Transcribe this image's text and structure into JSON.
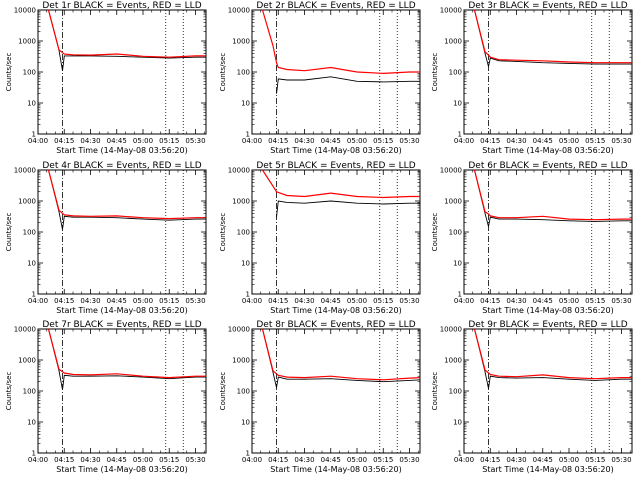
{
  "chart_data": [
    {
      "type": "line",
      "title": "Det 1r BLACK = Events, RED = LLD",
      "xlabel": "Start Time (14-May-08 03:56:20)",
      "ylabel": "Counts/sec",
      "y_scale": "log",
      "ylim": [
        1,
        10000
      ],
      "x_range": [
        "04:00",
        "05:36"
      ],
      "x_ticks": [
        "04:00",
        "04:15",
        "04:30",
        "04:45",
        "05:00",
        "05:15",
        "05:30"
      ],
      "y_ticks": [
        "1",
        "10",
        "100",
        "1000",
        "10000"
      ],
      "markers": {
        "dashdot": "04:14",
        "dotted": [
          "05:13",
          "05:23"
        ]
      },
      "series": [
        {
          "color": "#000000",
          "x": [
            "04:06",
            "04:12",
            "04:14",
            "04:15",
            "04:20",
            "04:30",
            "04:45",
            "05:00",
            "05:15",
            "05:30",
            "05:36"
          ],
          "y": [
            10000,
            500,
            110,
            330,
            330,
            330,
            320,
            300,
            280,
            300,
            300
          ]
        },
        {
          "color": "#ff0000",
          "x": [
            "04:06",
            "04:12",
            "04:14",
            "04:15",
            "04:20",
            "04:30",
            "04:45",
            "05:00",
            "05:15",
            "05:30",
            "05:36"
          ],
          "y": [
            10000,
            520,
            420,
            380,
            360,
            350,
            380,
            320,
            300,
            330,
            330
          ]
        }
      ]
    },
    {
      "type": "line",
      "title": "Det 2r BLACK = Events, RED = LLD",
      "xlabel": "Start Time (14-May-08 03:56:20)",
      "ylabel": "Counts/sec",
      "y_scale": "log",
      "ylim": [
        1,
        10000
      ],
      "x_range": [
        "04:00",
        "05:36"
      ],
      "x_ticks": [
        "04:00",
        "04:15",
        "04:30",
        "04:45",
        "05:00",
        "05:15",
        "05:30"
      ],
      "y_ticks": [
        "1",
        "10",
        "100",
        "1000",
        "10000"
      ],
      "markers": {
        "dashdot": "04:14",
        "dotted": [
          "05:13",
          "05:23"
        ]
      },
      "series": [
        {
          "color": "#000000",
          "x": [
            "04:14",
            "04:15",
            "04:20",
            "04:30",
            "04:45",
            "05:00",
            "05:15",
            "05:30",
            "05:36"
          ],
          "y": [
            20,
            60,
            55,
            55,
            70,
            50,
            48,
            50,
            50
          ]
        },
        {
          "color": "#ff0000",
          "x": [
            "04:06",
            "04:12",
            "04:14",
            "04:15",
            "04:20",
            "04:30",
            "04:45",
            "05:00",
            "05:15",
            "05:30",
            "05:36"
          ],
          "y": [
            10000,
            700,
            200,
            140,
            120,
            110,
            140,
            100,
            90,
            100,
            100
          ]
        }
      ]
    },
    {
      "type": "line",
      "title": "Det 3r BLACK = Events, RED = LLD",
      "xlabel": "Start Time (14-May-08 03:56:20)",
      "ylabel": "Counts/sec",
      "y_scale": "log",
      "ylim": [
        1,
        10000
      ],
      "x_range": [
        "04:00",
        "05:36"
      ],
      "x_ticks": [
        "04:00",
        "04:15",
        "04:30",
        "04:45",
        "05:00",
        "05:15",
        "05:30"
      ],
      "y_ticks": [
        "1",
        "10",
        "100",
        "1000",
        "10000"
      ],
      "markers": {
        "dashdot": "04:14",
        "dotted": [
          "05:13",
          "05:23"
        ]
      },
      "series": [
        {
          "color": "#000000",
          "x": [
            "04:06",
            "04:12",
            "04:14",
            "04:15",
            "04:20",
            "04:30",
            "04:45",
            "05:00",
            "05:15",
            "05:30",
            "05:36"
          ],
          "y": [
            10000,
            400,
            150,
            280,
            230,
            220,
            200,
            190,
            180,
            180,
            180
          ]
        },
        {
          "color": "#ff0000",
          "x": [
            "04:06",
            "04:12",
            "04:14",
            "04:15",
            "04:20",
            "04:30",
            "04:45",
            "05:00",
            "05:15",
            "05:30",
            "05:36"
          ],
          "y": [
            10000,
            450,
            350,
            300,
            250,
            240,
            230,
            210,
            200,
            200,
            200
          ]
        }
      ]
    },
    {
      "type": "line",
      "title": "Det 4r BLACK = Events, RED = LLD",
      "xlabel": "Start Time (14-May-08 03:56:20)",
      "ylabel": "Counts/sec",
      "y_scale": "log",
      "ylim": [
        1,
        10000
      ],
      "x_range": [
        "04:00",
        "05:36"
      ],
      "x_ticks": [
        "04:00",
        "04:15",
        "04:30",
        "04:45",
        "05:00",
        "05:15",
        "05:30"
      ],
      "y_ticks": [
        "1",
        "10",
        "100",
        "1000",
        "10000"
      ],
      "markers": {
        "dashdot": "04:14",
        "dotted": [
          "05:13",
          "05:23"
        ]
      },
      "series": [
        {
          "color": "#000000",
          "x": [
            "04:06",
            "04:12",
            "04:14",
            "04:15",
            "04:20",
            "04:30",
            "04:45",
            "05:00",
            "05:15",
            "05:30",
            "05:36"
          ],
          "y": [
            10000,
            450,
            120,
            320,
            300,
            300,
            290,
            260,
            240,
            260,
            260
          ]
        },
        {
          "color": "#ff0000",
          "x": [
            "04:06",
            "04:12",
            "04:14",
            "04:15",
            "04:20",
            "04:30",
            "04:45",
            "05:00",
            "05:15",
            "05:30",
            "05:36"
          ],
          "y": [
            10000,
            500,
            400,
            360,
            330,
            320,
            330,
            290,
            270,
            290,
            290
          ]
        }
      ]
    },
    {
      "type": "line",
      "title": "Det 5r BLACK = Events, RED = LLD",
      "xlabel": "Start Time (14-May-08 03:56:20)",
      "ylabel": "Counts/sec",
      "y_scale": "log",
      "ylim": [
        1,
        10000
      ],
      "x_range": [
        "04:00",
        "05:36"
      ],
      "x_ticks": [
        "04:00",
        "04:15",
        "04:30",
        "04:45",
        "05:00",
        "05:15",
        "05:30"
      ],
      "y_ticks": [
        "1",
        "10",
        "100",
        "1000",
        "10000"
      ],
      "markers": {
        "dashdot": "04:14",
        "dotted": [
          "05:13",
          "05:23"
        ]
      },
      "series": [
        {
          "color": "#000000",
          "x": [
            "04:14",
            "04:15",
            "04:20",
            "04:30",
            "04:45",
            "05:00",
            "05:15",
            "05:30",
            "05:36"
          ],
          "y": [
            300,
            1000,
            900,
            850,
            1000,
            850,
            800,
            850,
            850
          ]
        },
        {
          "color": "#ff0000",
          "x": [
            "04:06",
            "04:12",
            "04:14",
            "04:15",
            "04:20",
            "04:30",
            "04:45",
            "05:00",
            "05:15",
            "05:30",
            "05:36"
          ],
          "y": [
            10000,
            3000,
            2000,
            1900,
            1500,
            1400,
            1800,
            1400,
            1300,
            1400,
            1400
          ]
        }
      ]
    },
    {
      "type": "line",
      "title": "Det 6r BLACK = Events, RED = LLD",
      "xlabel": "Start Time (14-May-08 03:56:20)",
      "ylabel": "Counts/sec",
      "y_scale": "log",
      "ylim": [
        1,
        10000
      ],
      "x_range": [
        "04:00",
        "05:36"
      ],
      "x_ticks": [
        "04:00",
        "04:15",
        "04:30",
        "04:45",
        "05:00",
        "05:15",
        "05:30"
      ],
      "y_ticks": [
        "1",
        "10",
        "100",
        "1000",
        "10000"
      ],
      "markers": {
        "dashdot": "04:14",
        "dotted": [
          "05:13",
          "05:23"
        ]
      },
      "series": [
        {
          "color": "#000000",
          "x": [
            "04:06",
            "04:12",
            "04:14",
            "04:15",
            "04:20",
            "04:30",
            "04:45",
            "05:00",
            "05:15",
            "05:30",
            "05:36"
          ],
          "y": [
            10000,
            400,
            150,
            300,
            260,
            260,
            250,
            230,
            220,
            230,
            230
          ]
        },
        {
          "color": "#ff0000",
          "x": [
            "04:06",
            "04:12",
            "04:14",
            "04:15",
            "04:20",
            "04:30",
            "04:45",
            "05:00",
            "05:15",
            "05:30",
            "05:36"
          ],
          "y": [
            10000,
            450,
            380,
            330,
            290,
            290,
            320,
            260,
            250,
            260,
            260
          ]
        }
      ]
    },
    {
      "type": "line",
      "title": "Det 7r BLACK = Events, RED = LLD",
      "xlabel": "Start Time (14-May-08 03:56:20)",
      "ylabel": "Counts/sec",
      "y_scale": "log",
      "ylim": [
        1,
        10000
      ],
      "x_range": [
        "04:00",
        "05:36"
      ],
      "x_ticks": [
        "04:00",
        "04:15",
        "04:30",
        "04:45",
        "05:00",
        "05:15",
        "05:30"
      ],
      "y_ticks": [
        "1",
        "10",
        "100",
        "1000",
        "10000"
      ],
      "markers": {
        "dashdot": "04:14",
        "dotted": [
          "05:13",
          "05:23"
        ]
      },
      "series": [
        {
          "color": "#000000",
          "x": [
            "04:06",
            "04:12",
            "04:14",
            "04:15",
            "04:20",
            "04:30",
            "04:45",
            "05:00",
            "05:15",
            "05:30",
            "05:36"
          ],
          "y": [
            10000,
            450,
            110,
            320,
            300,
            300,
            310,
            280,
            250,
            280,
            280
          ]
        },
        {
          "color": "#ff0000",
          "x": [
            "04:06",
            "04:12",
            "04:14",
            "04:15",
            "04:20",
            "04:30",
            "04:45",
            "05:00",
            "05:15",
            "05:30",
            "05:36"
          ],
          "y": [
            10000,
            500,
            420,
            380,
            340,
            330,
            360,
            300,
            270,
            300,
            300
          ]
        }
      ]
    },
    {
      "type": "line",
      "title": "Det 8r BLACK = Events, RED = LLD",
      "xlabel": "Start Time (14-May-08 03:56:20)",
      "ylabel": "Counts/sec",
      "y_scale": "log",
      "ylim": [
        1,
        10000
      ],
      "x_range": [
        "04:00",
        "05:36"
      ],
      "x_ticks": [
        "04:00",
        "04:15",
        "04:30",
        "04:45",
        "05:00",
        "05:15",
        "05:30"
      ],
      "y_ticks": [
        "1",
        "10",
        "100",
        "1000",
        "10000"
      ],
      "markers": {
        "dashdot": "04:14",
        "dotted": [
          "05:13",
          "05:23"
        ]
      },
      "series": [
        {
          "color": "#000000",
          "x": [
            "04:06",
            "04:12",
            "04:14",
            "04:15",
            "04:20",
            "04:30",
            "04:45",
            "05:00",
            "05:15",
            "05:30",
            "05:36"
          ],
          "y": [
            10000,
            400,
            130,
            280,
            240,
            240,
            250,
            220,
            200,
            220,
            230
          ]
        },
        {
          "color": "#ff0000",
          "x": [
            "04:06",
            "04:12",
            "04:14",
            "04:15",
            "04:20",
            "04:30",
            "04:45",
            "05:00",
            "05:15",
            "05:30",
            "05:36"
          ],
          "y": [
            10000,
            450,
            360,
            320,
            280,
            270,
            300,
            250,
            230,
            260,
            270
          ]
        }
      ]
    },
    {
      "type": "line",
      "title": "Det 9r BLACK = Events, RED = LLD",
      "xlabel": "Start Time (14-May-08 03:56:20)",
      "ylabel": "Counts/sec",
      "y_scale": "log",
      "ylim": [
        1,
        10000
      ],
      "x_range": [
        "04:00",
        "05:36"
      ],
      "x_ticks": [
        "04:00",
        "04:15",
        "04:30",
        "04:45",
        "05:00",
        "05:15",
        "05:30"
      ],
      "y_ticks": [
        "1",
        "10",
        "100",
        "1000",
        "10000"
      ],
      "markers": {
        "dashdot": "04:14",
        "dotted": [
          "05:13",
          "05:23"
        ]
      },
      "series": [
        {
          "color": "#000000",
          "x": [
            "04:06",
            "04:12",
            "04:14",
            "04:15",
            "04:20",
            "04:30",
            "04:45",
            "05:00",
            "05:15",
            "05:30",
            "05:36"
          ],
          "y": [
            10000,
            420,
            120,
            300,
            270,
            260,
            270,
            240,
            220,
            240,
            240
          ]
        },
        {
          "color": "#ff0000",
          "x": [
            "04:06",
            "04:12",
            "04:14",
            "04:15",
            "04:20",
            "04:30",
            "04:45",
            "05:00",
            "05:15",
            "05:30",
            "05:36"
          ],
          "y": [
            10000,
            480,
            380,
            340,
            300,
            290,
            330,
            270,
            250,
            270,
            270
          ]
        }
      ]
    }
  ]
}
